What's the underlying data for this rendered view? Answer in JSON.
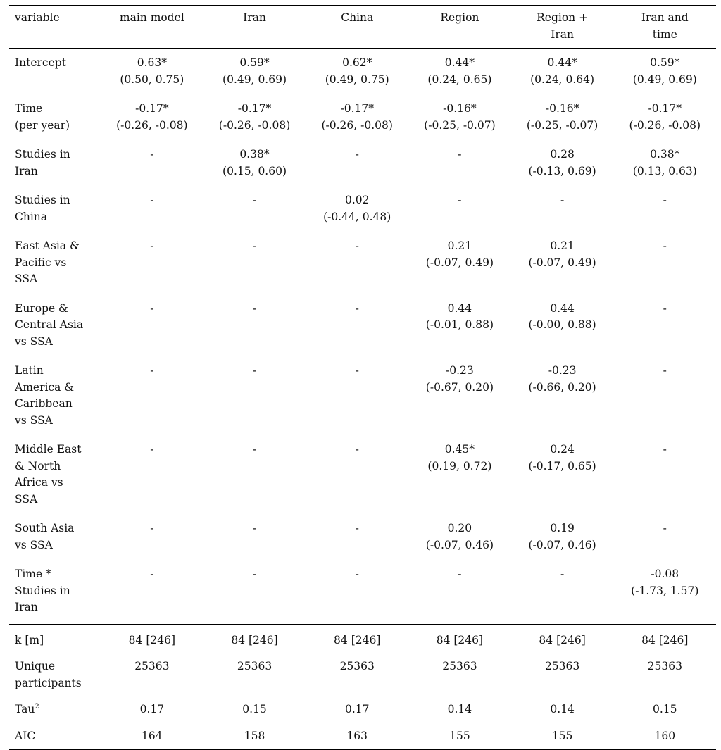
{
  "columns": [
    "variable",
    "main model",
    "Iran",
    "China",
    "Region",
    "Region +\nIran",
    "Iran and\ntime"
  ],
  "rows": [
    {
      "label": "Intercept",
      "cells": [
        [
          "0.63*",
          "(0.50, 0.75)"
        ],
        [
          "0.59*",
          "(0.49, 0.69)"
        ],
        [
          "0.62*",
          "(0.49, 0.75)"
        ],
        [
          "0.44*",
          "(0.24, 0.65)"
        ],
        [
          "0.44*",
          "(0.24, 0.64)"
        ],
        [
          "0.59*",
          "(0.49, 0.69)"
        ]
      ]
    },
    {
      "label": "Time\n(per year)",
      "cells": [
        [
          "-0.17*",
          "(-0.26, -0.08)"
        ],
        [
          "-0.17*",
          "(-0.26, -0.08)"
        ],
        [
          "-0.17*",
          "(-0.26, -0.08)"
        ],
        [
          "-0.16*",
          "(-0.25, -0.07)"
        ],
        [
          "-0.16*",
          "(-0.25, -0.07)"
        ],
        [
          "-0.17*",
          "(-0.26, -0.08)"
        ]
      ]
    },
    {
      "label": "Studies in\nIran",
      "cells": [
        [
          "-",
          ""
        ],
        [
          "0.38*",
          "(0.15, 0.60)"
        ],
        [
          "-",
          ""
        ],
        [
          "-",
          ""
        ],
        [
          "0.28",
          "(-0.13, 0.69)"
        ],
        [
          "0.38*",
          "(0.13, 0.63)"
        ]
      ]
    },
    {
      "label": "Studies in\nChina",
      "cells": [
        [
          "-",
          ""
        ],
        [
          "-",
          ""
        ],
        [
          "0.02",
          "(-0.44, 0.48)"
        ],
        [
          "-",
          ""
        ],
        [
          "-",
          ""
        ],
        [
          "-",
          ""
        ]
      ]
    },
    {
      "label": "East Asia &\nPacific vs\nSSA",
      "cells": [
        [
          "-",
          ""
        ],
        [
          "-",
          ""
        ],
        [
          "-",
          ""
        ],
        [
          "0.21",
          "(-0.07, 0.49)"
        ],
        [
          "0.21",
          "(-0.07, 0.49)"
        ],
        [
          "-",
          ""
        ]
      ]
    },
    {
      "label": "Europe &\nCentral Asia\nvs SSA",
      "cells": [
        [
          "-",
          ""
        ],
        [
          "-",
          ""
        ],
        [
          "-",
          ""
        ],
        [
          "0.44",
          "(-0.01, 0.88)"
        ],
        [
          "0.44",
          "(-0.00, 0.88)"
        ],
        [
          "-",
          ""
        ]
      ]
    },
    {
      "label": "Latin\nAmerica &\nCaribbean\nvs SSA",
      "cells": [
        [
          "-",
          ""
        ],
        [
          "-",
          ""
        ],
        [
          "-",
          ""
        ],
        [
          "-0.23",
          "(-0.67, 0.20)"
        ],
        [
          "-0.23",
          "(-0.66, 0.20)"
        ],
        [
          "-",
          ""
        ]
      ]
    },
    {
      "label": "Middle East\n& North\nAfrica vs\nSSA",
      "cells": [
        [
          "-",
          ""
        ],
        [
          "-",
          ""
        ],
        [
          "-",
          ""
        ],
        [
          "0.45*",
          "(0.19, 0.72)"
        ],
        [
          "0.24",
          "(-0.17, 0.65)"
        ],
        [
          "-",
          ""
        ]
      ]
    },
    {
      "label": "South Asia\nvs SSA",
      "cells": [
        [
          "-",
          ""
        ],
        [
          "-",
          ""
        ],
        [
          "-",
          ""
        ],
        [
          "0.20",
          "(-0.07, 0.46)"
        ],
        [
          "0.19",
          "(-0.07, 0.46)"
        ],
        [
          "-",
          ""
        ]
      ]
    },
    {
      "label": "Time *\nStudies in\nIran",
      "cells": [
        [
          "-",
          ""
        ],
        [
          "-",
          ""
        ],
        [
          "-",
          ""
        ],
        [
          "-",
          ""
        ],
        [
          "-",
          ""
        ],
        [
          "-0.08",
          "(-1.73, 1.57)"
        ]
      ]
    }
  ],
  "stats": [
    {
      "label": "k [m]",
      "values": [
        "84 [246]",
        "84 [246]",
        "84 [246]",
        "84 [246]",
        "84 [246]",
        "84 [246]"
      ]
    },
    {
      "label": "Unique\nparticipants",
      "values": [
        "25363",
        "25363",
        "25363",
        "25363",
        "25363",
        "25363"
      ]
    },
    {
      "label": "Tau",
      "label_sup": "2",
      "values": [
        "0.17",
        "0.15",
        "0.17",
        "0.14",
        "0.14",
        "0.15"
      ]
    },
    {
      "label": "AIC",
      "values": [
        "164",
        "158",
        "163",
        "155",
        "155",
        "160"
      ]
    }
  ]
}
